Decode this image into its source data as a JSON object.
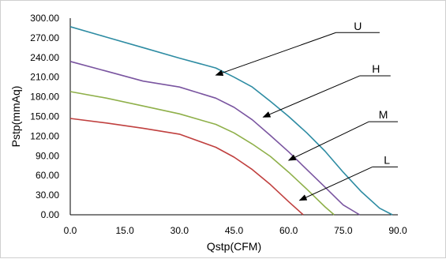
{
  "chart_data": {
    "type": "line",
    "title": "",
    "xlabel": "Qstp(CFM)",
    "ylabel": "Pstp(mmAq)",
    "xlim": [
      0,
      90
    ],
    "ylim": [
      0,
      300
    ],
    "x_ticks": [
      "0.0",
      "15.0",
      "30.0",
      "45.0",
      "60.0",
      "75.0",
      "90.0"
    ],
    "y_ticks": [
      "0.00",
      "30.00",
      "60.00",
      "90.00",
      "120.00",
      "150.00",
      "180.00",
      "210.00",
      "240.00",
      "270.00",
      "300.00"
    ],
    "grid": false,
    "legend": "none",
    "series": [
      {
        "name": "U",
        "color": "#2e8ca3",
        "x": [
          0,
          10,
          20,
          30,
          40,
          45,
          50,
          55,
          60,
          65,
          70,
          75,
          80,
          85,
          88.5
        ],
        "y": [
          287,
          271,
          255,
          239,
          224,
          210,
          195,
          173,
          150,
          125,
          97,
          65,
          35,
          10,
          0
        ]
      },
      {
        "name": "H",
        "color": "#7a55a0",
        "x": [
          0,
          10,
          20,
          30,
          40,
          45,
          50,
          55,
          60,
          65,
          70,
          75,
          79.5
        ],
        "y": [
          234,
          219,
          204,
          195,
          178,
          164,
          145,
          121,
          96,
          69,
          42,
          15,
          0
        ]
      },
      {
        "name": "M",
        "color": "#8fb04a",
        "x": [
          0,
          10,
          20,
          30,
          40,
          45,
          50,
          55,
          60,
          65,
          70,
          72.5
        ],
        "y": [
          188,
          178,
          166,
          154,
          138,
          125,
          108,
          89,
          65,
          39,
          12,
          0
        ]
      },
      {
        "name": "L",
        "color": "#c0403f",
        "x": [
          0,
          10,
          20,
          30,
          40,
          45,
          50,
          55,
          60,
          64
        ],
        "y": [
          147,
          140,
          132,
          123,
          103,
          88,
          69,
          46,
          20,
          0
        ]
      }
    ],
    "annotations": [
      {
        "label": "U",
        "text_x": 79,
        "text_y": 282,
        "line_end_x": 85,
        "line_start_x": 73,
        "line_y": 278,
        "arrow_x": 40,
        "arrow_y": 213
      },
      {
        "label": "H",
        "text_x": 84,
        "text_y": 217,
        "line_end_x": 88,
        "line_start_x": 79.5,
        "line_y": 212,
        "arrow_x": 53,
        "arrow_y": 149
      },
      {
        "label": "M",
        "text_x": 86,
        "text_y": 147,
        "line_end_x": 90,
        "line_start_x": 82,
        "line_y": 142,
        "arrow_x": 60,
        "arrow_y": 83
      },
      {
        "label": "L",
        "text_x": 87,
        "text_y": 78,
        "line_end_x": 90,
        "line_start_x": 83,
        "line_y": 73,
        "arrow_x": 63,
        "arrow_y": 22
      }
    ]
  }
}
